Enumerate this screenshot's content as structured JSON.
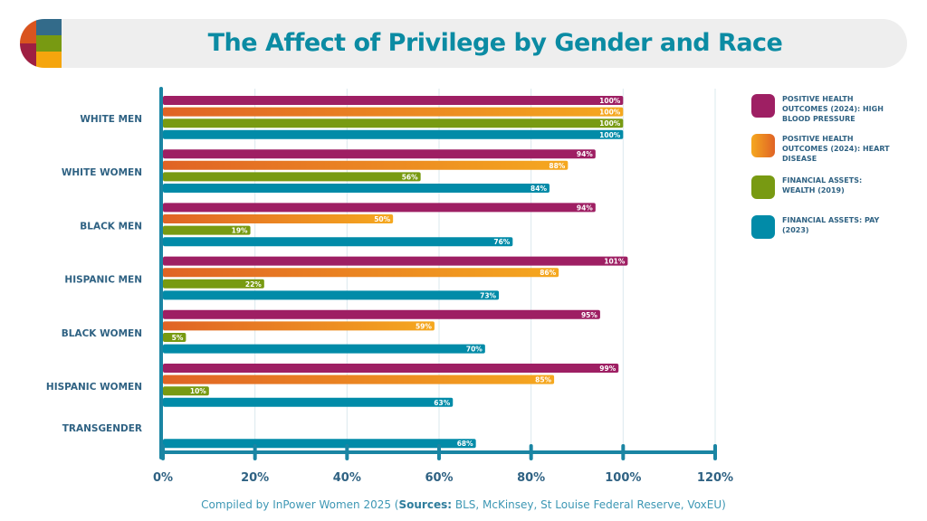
{
  "title": "The Affect of Privilege by Gender and Race",
  "footer": {
    "compiled": "Compiled by InPower Women 2025 (",
    "sources_label": "Sources:",
    "sources": " BLS, McKinsey, St Louise Federal Reserve, VoxEU)"
  },
  "chart_data": {
    "type": "bar",
    "orientation": "horizontal",
    "title": "The Affect of Privilege by Gender and Race",
    "categories": [
      "WHITE MEN",
      "WHITE WOMEN",
      "BLACK MEN",
      "HISPANIC MEN",
      "BLACK WOMEN",
      "HISPANIC WOMEN",
      "TRANSGENDER"
    ],
    "series": [
      {
        "name": "POSITIVE HEALTH OUTCOMES (2024): HIGH BLOOD PRESSURE",
        "color": "#9e1f63",
        "values": [
          100,
          94,
          94,
          101,
          95,
          99,
          null
        ]
      },
      {
        "name": "POSITIVE HEALTH OUTCOMES (2024): HEART DISEASE",
        "color": "#e8832a",
        "gradient": [
          "#e06325",
          "#f5a81f"
        ],
        "values": [
          100,
          88,
          50,
          86,
          59,
          85,
          null
        ]
      },
      {
        "name": "FINANCIAL ASSETS: WEALTH (2019)",
        "color": "#789a12",
        "values": [
          100,
          56,
          19,
          22,
          5,
          10,
          null
        ]
      },
      {
        "name": "FINANCIAL ASSETS: PAY (2023)",
        "color": "#018ba8",
        "values": [
          100,
          84,
          76,
          73,
          70,
          63,
          68
        ]
      }
    ],
    "xlim": [
      0,
      120
    ],
    "xticks": [
      "0%",
      "20%",
      "40%",
      "60%",
      "80%",
      "100%",
      "120%"
    ],
    "grid": true,
    "legend": "right",
    "axis_color": "#1a85a3"
  }
}
